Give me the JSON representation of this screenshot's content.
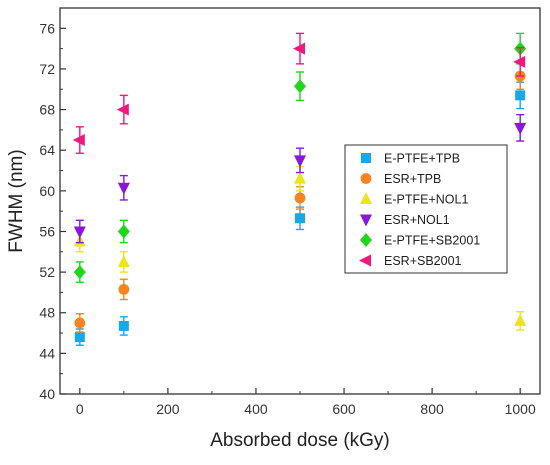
{
  "chart_data": {
    "type": "scatter",
    "xlabel": "Absorbed dose (kGy)",
    "ylabel": "FWHM (nm)",
    "xlim": [
      -45,
      1045
    ],
    "ylim": [
      40,
      78
    ],
    "xticks": [
      0,
      200,
      400,
      600,
      800,
      1000
    ],
    "yticks": [
      40,
      44,
      48,
      52,
      56,
      60,
      64,
      68,
      72,
      76
    ],
    "grid": false,
    "legend_position": "right",
    "series": [
      {
        "name": "E-PTFE+TPB",
        "color": "#1aa7e8",
        "marker": "square",
        "points": [
          {
            "x": 0,
            "y": 45.6,
            "err": 0.8
          },
          {
            "x": 100,
            "y": 46.7,
            "err": 0.9
          },
          {
            "x": 500,
            "y": 57.3,
            "err": 1.1
          },
          {
            "x": 1000,
            "y": 69.4,
            "err": 1.3
          }
        ]
      },
      {
        "name": "ESR+TPB",
        "color": "#f7841e",
        "marker": "circle",
        "points": [
          {
            "x": 0,
            "y": 47.0,
            "err": 0.9
          },
          {
            "x": 100,
            "y": 50.3,
            "err": 1.0
          },
          {
            "x": 500,
            "y": 59.3,
            "err": 1.1
          },
          {
            "x": 1000,
            "y": 71.3,
            "err": 1.3
          }
        ]
      },
      {
        "name": "E-PTFE+NOL1",
        "color": "#ece51a",
        "marker": "triangle-up",
        "points": [
          {
            "x": 0,
            "y": 55.0,
            "err": 1.0
          },
          {
            "x": 100,
            "y": 53.0,
            "err": 1.0
          },
          {
            "x": 500,
            "y": 61.2,
            "err": 1.2
          },
          {
            "x": 1000,
            "y": 47.2,
            "err": 0.9
          }
        ]
      },
      {
        "name": "ESR+NOL1",
        "color": "#8a16d8",
        "marker": "triangle-down",
        "points": [
          {
            "x": 0,
            "y": 56.0,
            "err": 1.1
          },
          {
            "x": 100,
            "y": 60.3,
            "err": 1.2
          },
          {
            "x": 500,
            "y": 63.0,
            "err": 1.2
          },
          {
            "x": 1000,
            "y": 66.2,
            "err": 1.3
          }
        ]
      },
      {
        "name": "E-PTFE+SB2001",
        "color": "#1fd61a",
        "marker": "diamond",
        "points": [
          {
            "x": 0,
            "y": 52.0,
            "err": 1.0
          },
          {
            "x": 100,
            "y": 56.0,
            "err": 1.1
          },
          {
            "x": 500,
            "y": 70.3,
            "err": 1.4
          },
          {
            "x": 1000,
            "y": 74.0,
            "err": 1.5
          }
        ]
      },
      {
        "name": "ESR+SB2001",
        "color": "#f0187c",
        "marker": "triangle-left",
        "points": [
          {
            "x": 0,
            "y": 65.0,
            "err": 1.3
          },
          {
            "x": 100,
            "y": 68.0,
            "err": 1.4
          },
          {
            "x": 500,
            "y": 74.0,
            "err": 1.5
          },
          {
            "x": 1000,
            "y": 72.7,
            "err": 1.4
          }
        ]
      }
    ]
  }
}
